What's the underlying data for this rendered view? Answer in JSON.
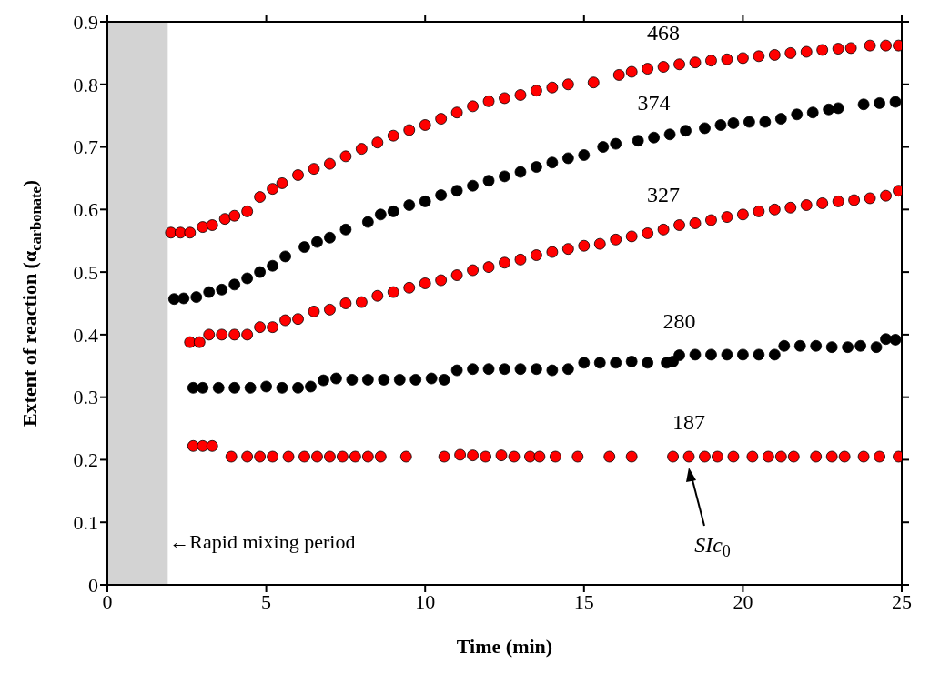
{
  "chart_data": {
    "type": "scatter",
    "xlabel": "Time (min)",
    "ylabel": "Extent of reaction (α$_{carbonate}$)",
    "xlim": [
      0,
      25
    ],
    "xticks": [
      0,
      5,
      10,
      15,
      20,
      25
    ],
    "ylim": [
      0,
      0.9
    ],
    "yticks": [
      0,
      0.1,
      0.2,
      0.3,
      0.4,
      0.5,
      0.6,
      0.7,
      0.8,
      0.9
    ],
    "grid": false,
    "legend": false,
    "marker": "circle",
    "bands": [
      {
        "axis": "x",
        "from": 0,
        "to": 1.9,
        "label": "←Rapid mixing period",
        "color": "#d3d3d3"
      }
    ],
    "annotations": [
      "SIc$_{0}$"
    ],
    "series": [
      {
        "name": "468",
        "color": "#ff0000",
        "x": [
          2.0,
          2.3,
          2.6,
          3.0,
          3.3,
          3.7,
          4.0,
          4.4,
          4.8,
          5.2,
          5.5,
          6.0,
          6.5,
          7.0,
          7.5,
          8.0,
          8.5,
          9.0,
          9.5,
          10.0,
          10.5,
          11.0,
          11.5,
          12.0,
          12.5,
          13.0,
          13.5,
          14.0,
          14.5,
          15.3,
          16.1,
          16.5,
          17.0,
          17.5,
          18.0,
          18.5,
          19.0,
          19.5,
          20.0,
          20.5,
          21.0,
          21.5,
          22.0,
          22.5,
          23.0,
          23.4,
          24.0,
          24.5,
          24.9
        ],
        "values": [
          0.563,
          0.563,
          0.563,
          0.572,
          0.575,
          0.585,
          0.59,
          0.597,
          0.62,
          0.633,
          0.642,
          0.655,
          0.665,
          0.673,
          0.685,
          0.697,
          0.707,
          0.718,
          0.727,
          0.735,
          0.745,
          0.755,
          0.765,
          0.773,
          0.778,
          0.783,
          0.79,
          0.795,
          0.8,
          0.803,
          0.815,
          0.82,
          0.825,
          0.828,
          0.832,
          0.835,
          0.838,
          0.84,
          0.842,
          0.845,
          0.847,
          0.85,
          0.852,
          0.855,
          0.857,
          0.858,
          0.862,
          0.862,
          0.862
        ]
      },
      {
        "name": "374",
        "color": "#000000",
        "x": [
          2.1,
          2.4,
          2.8,
          3.2,
          3.6,
          4.0,
          4.4,
          4.8,
          5.2,
          5.6,
          6.2,
          6.6,
          7.0,
          7.5,
          8.2,
          8.6,
          9.0,
          9.5,
          10.0,
          10.5,
          11.0,
          11.5,
          12.0,
          12.5,
          13.0,
          13.5,
          14.0,
          14.5,
          15.0,
          15.6,
          16.0,
          16.7,
          17.2,
          17.7,
          18.2,
          18.8,
          19.3,
          19.7,
          20.2,
          20.7,
          21.2,
          21.7,
          22.2,
          22.7,
          23.0,
          23.8,
          24.3,
          24.8
        ],
        "values": [
          0.457,
          0.458,
          0.46,
          0.468,
          0.472,
          0.48,
          0.49,
          0.5,
          0.51,
          0.525,
          0.54,
          0.548,
          0.555,
          0.568,
          0.58,
          0.592,
          0.597,
          0.607,
          0.613,
          0.623,
          0.63,
          0.638,
          0.646,
          0.653,
          0.66,
          0.668,
          0.675,
          0.682,
          0.687,
          0.7,
          0.705,
          0.71,
          0.715,
          0.72,
          0.726,
          0.73,
          0.735,
          0.738,
          0.74,
          0.74,
          0.745,
          0.752,
          0.755,
          0.76,
          0.762,
          0.768,
          0.77,
          0.772
        ]
      },
      {
        "name": "327",
        "color": "#ff0000",
        "x": [
          2.6,
          2.9,
          3.2,
          3.6,
          4.0,
          4.4,
          4.8,
          5.2,
          5.6,
          6.0,
          6.5,
          7.0,
          7.5,
          8.0,
          8.5,
          9.0,
          9.5,
          10.0,
          10.5,
          11.0,
          11.5,
          12.0,
          12.5,
          13.0,
          13.5,
          14.0,
          14.5,
          15.0,
          15.5,
          16.0,
          16.5,
          17.0,
          17.5,
          18.0,
          18.5,
          19.0,
          19.5,
          20.0,
          20.5,
          21.0,
          21.5,
          22.0,
          22.5,
          23.0,
          23.5,
          24.0,
          24.5,
          24.9
        ],
        "values": [
          0.388,
          0.388,
          0.4,
          0.4,
          0.4,
          0.4,
          0.412,
          0.412,
          0.423,
          0.425,
          0.437,
          0.44,
          0.45,
          0.452,
          0.462,
          0.468,
          0.475,
          0.482,
          0.487,
          0.495,
          0.503,
          0.508,
          0.515,
          0.52,
          0.527,
          0.532,
          0.537,
          0.542,
          0.545,
          0.552,
          0.557,
          0.562,
          0.568,
          0.575,
          0.578,
          0.583,
          0.588,
          0.592,
          0.597,
          0.6,
          0.603,
          0.607,
          0.61,
          0.613,
          0.615,
          0.618,
          0.622,
          0.63
        ]
      },
      {
        "name": "280",
        "color": "#000000",
        "x": [
          2.7,
          3.0,
          3.5,
          4.0,
          4.5,
          5.0,
          5.5,
          6.0,
          6.4,
          6.8,
          7.2,
          7.7,
          8.2,
          8.7,
          9.2,
          9.7,
          10.2,
          10.6,
          11.0,
          11.5,
          12.0,
          12.5,
          13.0,
          13.5,
          14.0,
          14.5,
          15.0,
          15.5,
          16.0,
          16.5,
          17.0,
          17.6,
          17.8,
          18.0,
          18.5,
          19.0,
          19.5,
          20.0,
          20.5,
          21.0,
          21.3,
          21.8,
          22.3,
          22.8,
          23.3,
          23.7,
          24.2,
          24.5,
          24.8
        ],
        "values": [
          0.315,
          0.315,
          0.315,
          0.315,
          0.315,
          0.317,
          0.315,
          0.315,
          0.317,
          0.327,
          0.33,
          0.328,
          0.328,
          0.328,
          0.328,
          0.328,
          0.33,
          0.328,
          0.343,
          0.345,
          0.345,
          0.345,
          0.345,
          0.345,
          0.343,
          0.345,
          0.355,
          0.355,
          0.355,
          0.357,
          0.355,
          0.355,
          0.357,
          0.367,
          0.368,
          0.368,
          0.368,
          0.368,
          0.368,
          0.368,
          0.382,
          0.382,
          0.382,
          0.38,
          0.38,
          0.382,
          0.38,
          0.393,
          0.392
        ]
      },
      {
        "name": "187",
        "color": "#ff0000",
        "x": [
          2.7,
          3.0,
          3.3,
          3.9,
          4.4,
          4.8,
          5.2,
          5.7,
          6.2,
          6.6,
          7.0,
          7.4,
          7.8,
          8.2,
          8.6,
          9.4,
          10.6,
          11.1,
          11.5,
          11.9,
          12.4,
          12.8,
          13.3,
          13.6,
          14.1,
          14.8,
          15.8,
          16.5,
          17.8,
          18.3,
          18.8,
          19.2,
          19.7,
          20.3,
          20.8,
          21.2,
          21.6,
          22.3,
          22.8,
          23.2,
          23.8,
          24.3,
          24.9
        ],
        "values": [
          0.222,
          0.222,
          0.222,
          0.205,
          0.205,
          0.205,
          0.205,
          0.205,
          0.205,
          0.205,
          0.205,
          0.205,
          0.205,
          0.205,
          0.205,
          0.205,
          0.205,
          0.208,
          0.207,
          0.205,
          0.207,
          0.205,
          0.205,
          0.205,
          0.205,
          0.205,
          0.205,
          0.205,
          0.205,
          0.205,
          0.205,
          0.205,
          0.205,
          0.205,
          0.205,
          0.205,
          0.205,
          0.205,
          0.205,
          0.205,
          0.205,
          0.205,
          0.205
        ]
      }
    ]
  }
}
